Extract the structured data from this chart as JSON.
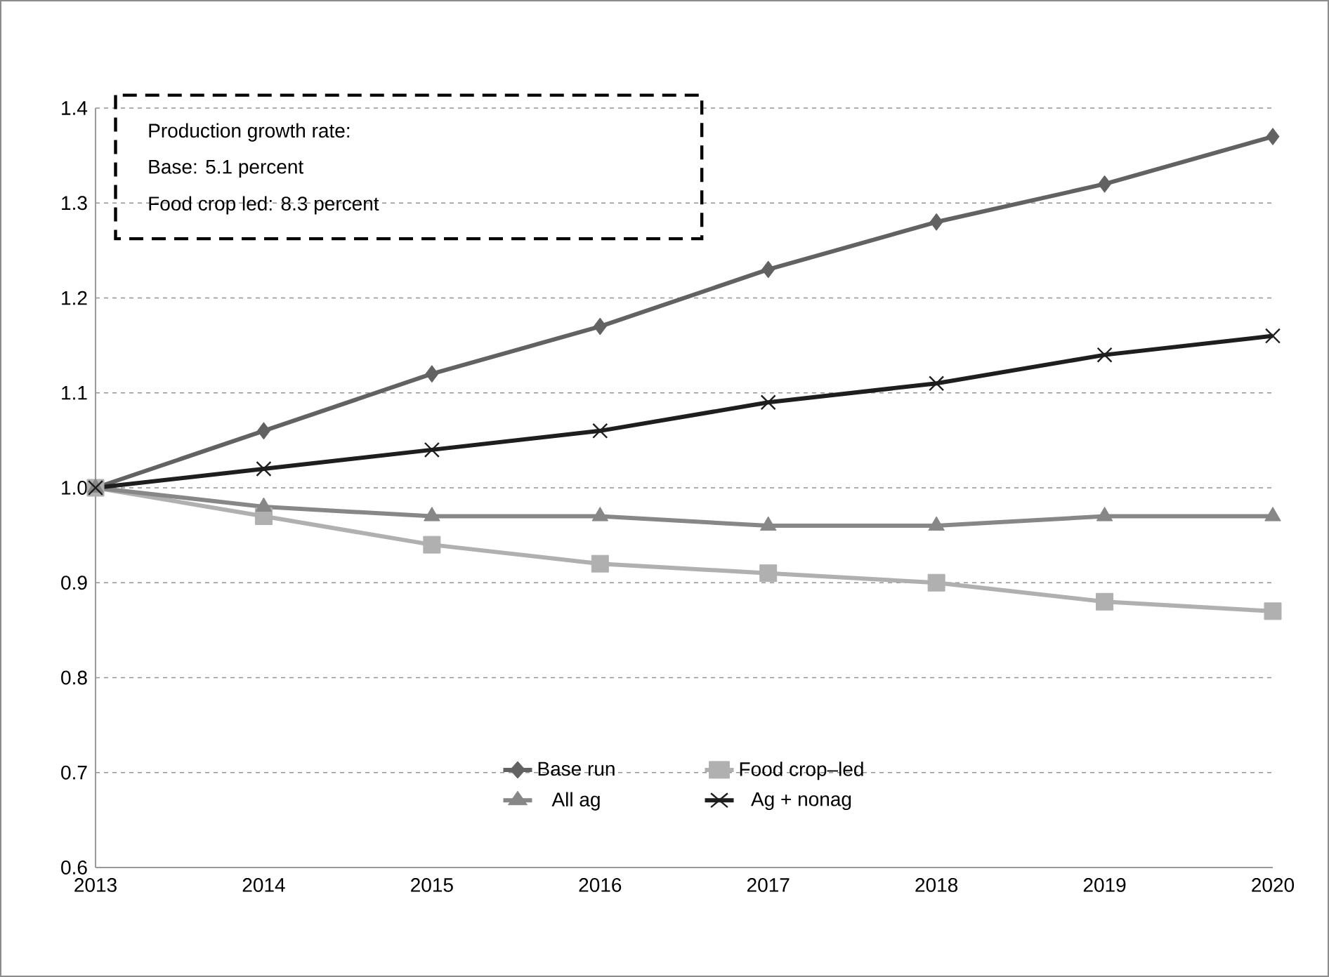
{
  "chart_data": {
    "type": "line",
    "x": [
      2013,
      2014,
      2015,
      2016,
      2017,
      2018,
      2019,
      2020
    ],
    "series": [
      {
        "name": "Base run",
        "color": "#626262",
        "marker": "diamond",
        "values": [
          1.0,
          1.06,
          1.12,
          1.17,
          1.23,
          1.28,
          1.32,
          1.37
        ]
      },
      {
        "name": "Food crop–led",
        "color": "#b0b0b0",
        "marker": "square",
        "values": [
          1.0,
          0.97,
          0.94,
          0.92,
          0.91,
          0.9,
          0.88,
          0.87
        ]
      },
      {
        "name": "All ag",
        "color": "#878787",
        "marker": "triangle",
        "values": [
          1.0,
          0.98,
          0.97,
          0.97,
          0.96,
          0.96,
          0.97,
          0.97
        ]
      },
      {
        "name": "Ag + nonag",
        "color": "#1e1e1e",
        "marker": "cross",
        "values": [
          1.0,
          1.02,
          1.04,
          1.06,
          1.09,
          1.11,
          1.14,
          1.16
        ]
      }
    ],
    "xlim": [
      2013,
      2020
    ],
    "xticks": [
      2013,
      2014,
      2015,
      2016,
      2017,
      2018,
      2019,
      2020
    ],
    "ylim": [
      0.6,
      1.4
    ],
    "yticks": [
      0.6,
      0.7,
      0.8,
      0.9,
      {
        "value": 1,
        "label": "1.0"
      },
      1.1,
      1.2,
      1.3,
      1.4
    ],
    "grid": "y",
    "legend": "bottom",
    "line_style": "solid",
    "annotations": [
      "Production growth rate:",
      "Base: 5.1 percent",
      "Food crop led: 8.3 percent"
    ]
  }
}
